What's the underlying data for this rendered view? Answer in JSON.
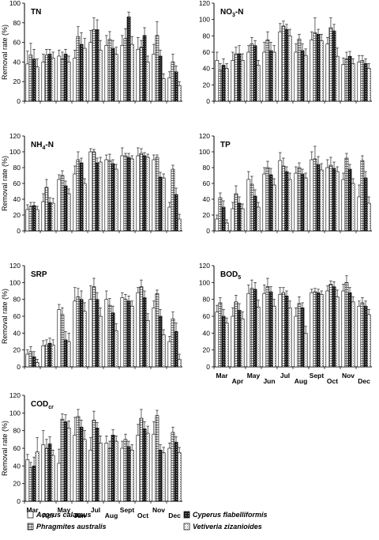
{
  "chart_data": [
    {
      "type": "bar",
      "title": "TN",
      "title_sub": "",
      "ylabel": "Removal rate (%)",
      "ylim": [
        0,
        100
      ],
      "yticks": [
        "0",
        "20",
        "40",
        "60",
        "80",
        "100"
      ],
      "categories": [
        "Mar",
        "Apr",
        "May",
        "Jun",
        "Jul",
        "Aug",
        "Sept",
        "Oct",
        "Nov",
        "Dec"
      ],
      "show_x_labels": false,
      "series": [
        {
          "values": [
            38,
            40,
            46,
            44,
            60,
            57,
            57,
            53,
            48,
            24
          ],
          "errors": [
            13,
            8,
            6,
            8,
            12,
            10,
            10,
            12,
            10,
            6
          ]
        },
        {
          "values": [
            47,
            47,
            43,
            66,
            73,
            63,
            64,
            55,
            67,
            40
          ],
          "errors": [
            12,
            6,
            7,
            10,
            12,
            8,
            10,
            7,
            14,
            8
          ]
        },
        {
          "values": [
            43,
            48,
            48,
            58,
            73,
            54,
            86,
            67,
            46,
            30
          ],
          "errors": [
            10,
            5,
            5,
            12,
            10,
            8,
            5,
            8,
            6,
            6
          ]
        },
        {
          "values": [
            35,
            44,
            40,
            54,
            52,
            48,
            58,
            40,
            23,
            16
          ],
          "errors": [
            8,
            6,
            6,
            10,
            10,
            7,
            8,
            6,
            5,
            4
          ]
        }
      ]
    },
    {
      "type": "bar",
      "title": "NO",
      "title_sub": "3",
      "title_suffix": "-N",
      "ylabel": "",
      "ylim": [
        0,
        120
      ],
      "yticks": [
        "0",
        "20",
        "40",
        "60",
        "80",
        "100",
        "120"
      ],
      "categories": [
        "Mar",
        "Apr",
        "May",
        "Jun",
        "Jul",
        "Aug",
        "Sept",
        "Oct",
        "Nov",
        "Dec"
      ],
      "show_x_labels": false,
      "series": [
        {
          "values": [
            50,
            50,
            60,
            60,
            85,
            60,
            75,
            70,
            45,
            48
          ],
          "errors": [
            10,
            10,
            8,
            12,
            10,
            10,
            10,
            8,
            8,
            8
          ]
        },
        {
          "values": [
            38,
            58,
            70,
            75,
            92,
            76,
            84,
            90,
            52,
            50
          ],
          "errors": [
            8,
            8,
            8,
            10,
            6,
            6,
            18,
            12,
            8,
            6
          ]
        },
        {
          "values": [
            44,
            58,
            68,
            62,
            88,
            62,
            82,
            86,
            55,
            46
          ],
          "errors": [
            8,
            10,
            6,
            10,
            6,
            8,
            6,
            8,
            6,
            6
          ]
        },
        {
          "values": [
            40,
            50,
            44,
            60,
            80,
            56,
            74,
            55,
            46,
            40
          ],
          "errors": [
            6,
            8,
            6,
            8,
            8,
            8,
            8,
            10,
            6,
            6
          ]
        }
      ]
    },
    {
      "type": "bar",
      "title": "NH",
      "title_sub": "4",
      "title_suffix": "-N",
      "ylabel": "Removal rate (%)",
      "ylim": [
        0,
        120
      ],
      "yticks": [
        "0",
        "20",
        "40",
        "60",
        "80",
        "100",
        "120"
      ],
      "categories": [
        "Mar",
        "Apr",
        "May",
        "Jun",
        "Jul",
        "Aug",
        "Sept",
        "Oct",
        "Nov",
        "Dec"
      ],
      "show_x_labels": false,
      "series": [
        {
          "values": [
            27,
            37,
            65,
            72,
            100,
            90,
            95,
            95,
            90,
            30
          ],
          "errors": [
            6,
            10,
            6,
            10,
            4,
            6,
            10,
            10,
            6,
            6
          ]
        },
        {
          "values": [
            31,
            55,
            70,
            90,
            100,
            89,
            95,
            98,
            93,
            78
          ],
          "errors": [
            5,
            10,
            6,
            10,
            3,
            8,
            3,
            6,
            3,
            5
          ]
        },
        {
          "values": [
            32,
            36,
            57,
            86,
            86,
            85,
            93,
            95,
            68,
            46
          ],
          "errors": [
            4,
            6,
            6,
            6,
            6,
            5,
            5,
            4,
            6,
            8
          ]
        },
        {
          "values": [
            27,
            35,
            47,
            60,
            87,
            78,
            91,
            93,
            67,
            15
          ],
          "errors": [
            4,
            6,
            6,
            6,
            6,
            6,
            4,
            4,
            5,
            6
          ]
        }
      ]
    },
    {
      "type": "bar",
      "title": "TP",
      "title_sub": "",
      "ylabel": "",
      "ylim": [
        0,
        120
      ],
      "yticks": [
        "0",
        "20",
        "40",
        "60",
        "80",
        "100",
        "120"
      ],
      "categories": [
        "Mar",
        "Apr",
        "May",
        "Jun",
        "Jul",
        "Aug",
        "Sept",
        "Oct",
        "Nov",
        "Dec"
      ],
      "show_x_labels": false,
      "series": [
        {
          "values": [
            15,
            28,
            65,
            72,
            89,
            73,
            90,
            80,
            65,
            43
          ],
          "errors": [
            5,
            8,
            10,
            8,
            10,
            8,
            10,
            10,
            8,
            15
          ]
        },
        {
          "values": [
            42,
            47,
            59,
            80,
            82,
            80,
            91,
            83,
            92,
            89
          ],
          "errors": [
            6,
            10,
            10,
            8,
            10,
            6,
            16,
            10,
            6,
            6
          ]
        },
        {
          "values": [
            30,
            35,
            44,
            71,
            75,
            72,
            84,
            79,
            78,
            67
          ],
          "errors": [
            8,
            8,
            8,
            8,
            6,
            6,
            10,
            8,
            6,
            8
          ]
        },
        {
          "values": [
            10,
            28,
            30,
            58,
            65,
            67,
            77,
            75,
            60,
            35
          ],
          "errors": [
            4,
            6,
            6,
            8,
            8,
            6,
            8,
            6,
            6,
            8
          ]
        }
      ]
    },
    {
      "type": "bar",
      "title": "SRP",
      "title_sub": "",
      "ylabel": "Removal rate (%)",
      "ylim": [
        0,
        120
      ],
      "yticks": [
        "0",
        "20",
        "40",
        "60",
        "80",
        "100",
        "120"
      ],
      "categories": [
        "Mar",
        "Apr",
        "May",
        "Jun",
        "Jul",
        "Aug",
        "Sept",
        "Oct",
        "Nov",
        "Dec"
      ],
      "show_x_labels": false,
      "series": [
        {
          "values": [
            15,
            25,
            68,
            78,
            80,
            80,
            82,
            88,
            70,
            30
          ],
          "errors": [
            5,
            6,
            6,
            16,
            16,
            10,
            6,
            6,
            8,
            6
          ]
        },
        {
          "values": [
            18,
            26,
            62,
            83,
            95,
            73,
            80,
            95,
            87,
            57
          ],
          "errors": [
            6,
            6,
            8,
            10,
            10,
            8,
            6,
            8,
            4,
            8
          ]
        },
        {
          "values": [
            12,
            28,
            32,
            80,
            80,
            64,
            78,
            82,
            60,
            42
          ],
          "errors": [
            6,
            6,
            10,
            10,
            8,
            8,
            6,
            8,
            8,
            10
          ]
        },
        {
          "values": [
            5,
            26,
            30,
            66,
            60,
            43,
            72,
            55,
            38,
            9
          ],
          "errors": [
            4,
            6,
            10,
            10,
            10,
            8,
            6,
            8,
            6,
            6
          ]
        }
      ]
    },
    {
      "type": "bar",
      "title": "BOD",
      "title_sub": "5",
      "ylabel": "",
      "ylim": [
        0,
        120
      ],
      "yticks": [
        "0",
        "20",
        "40",
        "60",
        "80",
        "100",
        "120"
      ],
      "categories": [
        "Mar",
        "Apr",
        "May",
        "Jun",
        "Jul",
        "Aug",
        "Sept",
        "Oct",
        "Nov",
        "Dec"
      ],
      "show_x_labels": true,
      "series": [
        {
          "values": [
            65,
            60,
            87,
            87,
            86,
            60,
            88,
            90,
            90,
            72
          ],
          "errors": [
            8,
            10,
            10,
            10,
            8,
            10,
            4,
            6,
            8,
            6
          ]
        },
        {
          "values": [
            76,
            77,
            93,
            95,
            88,
            75,
            89,
            98,
            100,
            76
          ],
          "errors": [
            6,
            8,
            10,
            10,
            6,
            8,
            4,
            4,
            8,
            6
          ]
        },
        {
          "values": [
            60,
            67,
            92,
            89,
            84,
            70,
            88,
            95,
            88,
            72
          ],
          "errors": [
            8,
            8,
            8,
            6,
            6,
            6,
            4,
            6,
            6,
            6
          ]
        },
        {
          "values": [
            52,
            57,
            71,
            72,
            70,
            40,
            86,
            83,
            77,
            62
          ],
          "errors": [
            6,
            8,
            8,
            8,
            8,
            8,
            4,
            8,
            6,
            6
          ]
        }
      ]
    },
    {
      "type": "bar",
      "title": "COD",
      "title_sub": "cr",
      "ylabel": "Removal rate (%)",
      "ylim": [
        0,
        120
      ],
      "yticks": [
        "0",
        "20",
        "40",
        "60",
        "80",
        "100",
        "120"
      ],
      "categories": [
        "Mar",
        "Apr",
        "May",
        "Jun",
        "Jul",
        "Aug",
        "Sept",
        "Oct",
        "Nov",
        "Dec"
      ],
      "show_x_labels": true,
      "series": [
        {
          "values": [
            47,
            64,
            43,
            75,
            58,
            66,
            60,
            75,
            76,
            60
          ],
          "errors": [
            6,
            16,
            16,
            20,
            14,
            8,
            8,
            12,
            14,
            6
          ]
        },
        {
          "values": [
            38,
            60,
            93,
            96,
            92,
            60,
            70,
            94,
            97,
            78
          ],
          "errors": [
            6,
            10,
            6,
            8,
            10,
            8,
            6,
            10,
            6,
            6
          ]
        },
        {
          "values": [
            40,
            65,
            90,
            84,
            83,
            75,
            62,
            82,
            58,
            67
          ],
          "errors": [
            10,
            8,
            8,
            8,
            6,
            6,
            6,
            8,
            6,
            6
          ]
        },
        {
          "values": [
            56,
            52,
            83,
            70,
            66,
            68,
            58,
            77,
            55,
            55
          ],
          "errors": [
            16,
            6,
            8,
            10,
            8,
            6,
            6,
            8,
            6,
            6
          ]
        }
      ]
    }
  ],
  "legend": [
    {
      "label": "Acorus calamus",
      "pattern": "open"
    },
    {
      "label": "Phragmites australis",
      "pattern": "grid"
    },
    {
      "label": "Cyperus flabelliformis",
      "pattern": "dense"
    },
    {
      "label": "Vetiveria zizanioides",
      "pattern": "light"
    }
  ]
}
